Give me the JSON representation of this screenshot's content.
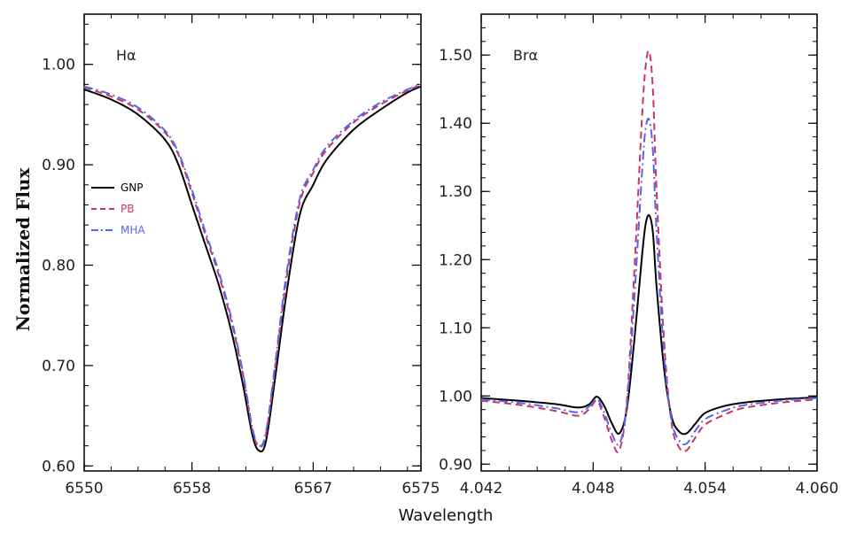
{
  "chart_data": [
    {
      "type": "line",
      "panel_label": "Hα",
      "xlim": [
        6550,
        6575
      ],
      "ylim": [
        0.595,
        1.05
      ],
      "x_ticks": [
        6550,
        6558,
        6567,
        6575
      ],
      "x_tick_labels": [
        "6550",
        "6558",
        "6567",
        "6575"
      ],
      "y_ticks": [
        0.6,
        0.7,
        0.8,
        0.9,
        1.0
      ],
      "y_tick_labels": [
        "0.60",
        "0.70",
        "0.80",
        "0.90",
        "1.00"
      ],
      "grid": false,
      "legend_position": "left-middle",
      "series": [
        {
          "name": "GNP",
          "color": "#000000",
          "style": "solid",
          "x": [
            6550,
            6552,
            6554,
            6556,
            6557,
            6558,
            6559,
            6560,
            6561,
            6561.8,
            6562.5,
            6563,
            6563.5,
            6564.2,
            6565,
            6566,
            6567,
            6568,
            6570,
            6572,
            6574,
            6575
          ],
          "y": [
            0.975,
            0.965,
            0.95,
            0.925,
            0.9,
            0.86,
            0.82,
            0.78,
            0.73,
            0.68,
            0.63,
            0.615,
            0.625,
            0.69,
            0.77,
            0.85,
            0.88,
            0.905,
            0.935,
            0.955,
            0.972,
            0.978
          ]
        },
        {
          "name": "PB",
          "color": "#cc3366",
          "style": "dashed",
          "x": [
            6550,
            6552,
            6554,
            6556,
            6557,
            6558,
            6559,
            6560,
            6561,
            6561.8,
            6562.5,
            6563,
            6563.5,
            6564.2,
            6565,
            6566,
            6567,
            6568,
            6570,
            6572,
            6574,
            6575
          ],
          "y": [
            0.977,
            0.968,
            0.955,
            0.932,
            0.91,
            0.872,
            0.83,
            0.79,
            0.74,
            0.69,
            0.635,
            0.619,
            0.632,
            0.7,
            0.785,
            0.862,
            0.892,
            0.915,
            0.942,
            0.96,
            0.974,
            0.979
          ]
        },
        {
          "name": "MHA",
          "color": "#5566ee",
          "style": "dashdot",
          "x": [
            6550,
            6552,
            6554,
            6556,
            6557,
            6558,
            6559,
            6560,
            6561,
            6561.8,
            6562.5,
            6563,
            6563.5,
            6564.2,
            6565,
            6566,
            6567,
            6568,
            6570,
            6572,
            6574,
            6575
          ],
          "y": [
            0.978,
            0.97,
            0.957,
            0.934,
            0.912,
            0.875,
            0.833,
            0.793,
            0.743,
            0.692,
            0.637,
            0.62,
            0.634,
            0.704,
            0.79,
            0.866,
            0.895,
            0.918,
            0.944,
            0.962,
            0.975,
            0.98
          ]
        }
      ]
    },
    {
      "type": "line",
      "panel_label": "Brα",
      "xlim": [
        4.042,
        4.06
      ],
      "ylim": [
        0.89,
        1.56
      ],
      "x_ticks": [
        4.042,
        4.048,
        4.054,
        4.06
      ],
      "x_tick_labels": [
        "4.042",
        "4.048",
        "4.054",
        "4.060"
      ],
      "y_ticks": [
        0.9,
        1.0,
        1.1,
        1.2,
        1.3,
        1.4,
        1.5
      ],
      "y_tick_labels": [
        "0.90",
        "1.00",
        "1.10",
        "1.20",
        "1.30",
        "1.40",
        "1.50"
      ],
      "grid": false,
      "series": [
        {
          "name": "GNP",
          "color": "#000000",
          "style": "solid",
          "x": [
            4.042,
            4.044,
            4.046,
            4.0472,
            4.0478,
            4.0482,
            4.0486,
            4.049,
            4.0494,
            4.0498,
            4.0502,
            4.0506,
            4.0508,
            4.051,
            4.0512,
            4.0514,
            4.0518,
            4.0522,
            4.0526,
            4.053,
            4.0535,
            4.054,
            4.055,
            4.056,
            4.058,
            4.06
          ],
          "y": [
            0.997,
            0.993,
            0.988,
            0.983,
            0.988,
            0.999,
            0.985,
            0.96,
            0.945,
            0.98,
            1.08,
            1.2,
            1.25,
            1.265,
            1.24,
            1.16,
            1.04,
            0.97,
            0.948,
            0.945,
            0.96,
            0.975,
            0.985,
            0.99,
            0.995,
            0.998
          ]
        },
        {
          "name": "PB",
          "color": "#cc3366",
          "style": "dashed",
          "x": [
            4.042,
            4.044,
            4.046,
            4.0472,
            4.0478,
            4.0482,
            4.0486,
            4.049,
            4.0494,
            4.0498,
            4.0502,
            4.0506,
            4.0508,
            4.051,
            4.0512,
            4.0514,
            4.0518,
            4.0522,
            4.0526,
            4.053,
            4.0535,
            4.054,
            4.055,
            4.056,
            4.058,
            4.06
          ],
          "y": [
            0.993,
            0.987,
            0.978,
            0.971,
            0.981,
            0.993,
            0.968,
            0.935,
            0.92,
            0.99,
            1.18,
            1.4,
            1.48,
            1.505,
            1.45,
            1.3,
            1.08,
            0.96,
            0.925,
            0.92,
            0.94,
            0.958,
            0.972,
            0.982,
            0.99,
            0.995
          ]
        },
        {
          "name": "MHA",
          "color": "#5566ee",
          "style": "dashdot",
          "x": [
            4.042,
            4.044,
            4.046,
            4.0472,
            4.0478,
            4.0482,
            4.0486,
            4.049,
            4.0494,
            4.0498,
            4.0502,
            4.0506,
            4.0508,
            4.051,
            4.0512,
            4.0514,
            4.0518,
            4.0522,
            4.0526,
            4.053,
            4.0535,
            4.054,
            4.055,
            4.056,
            4.058,
            4.06
          ],
          "y": [
            0.995,
            0.99,
            0.982,
            0.976,
            0.985,
            0.996,
            0.975,
            0.945,
            0.93,
            0.985,
            1.14,
            1.32,
            1.39,
            1.405,
            1.36,
            1.24,
            1.06,
            0.965,
            0.935,
            0.93,
            0.95,
            0.966,
            0.978,
            0.986,
            0.993,
            0.997
          ]
        }
      ]
    }
  ],
  "axes": {
    "ylabel": "Normalized Flux",
    "xlabel": "Wavelength"
  }
}
